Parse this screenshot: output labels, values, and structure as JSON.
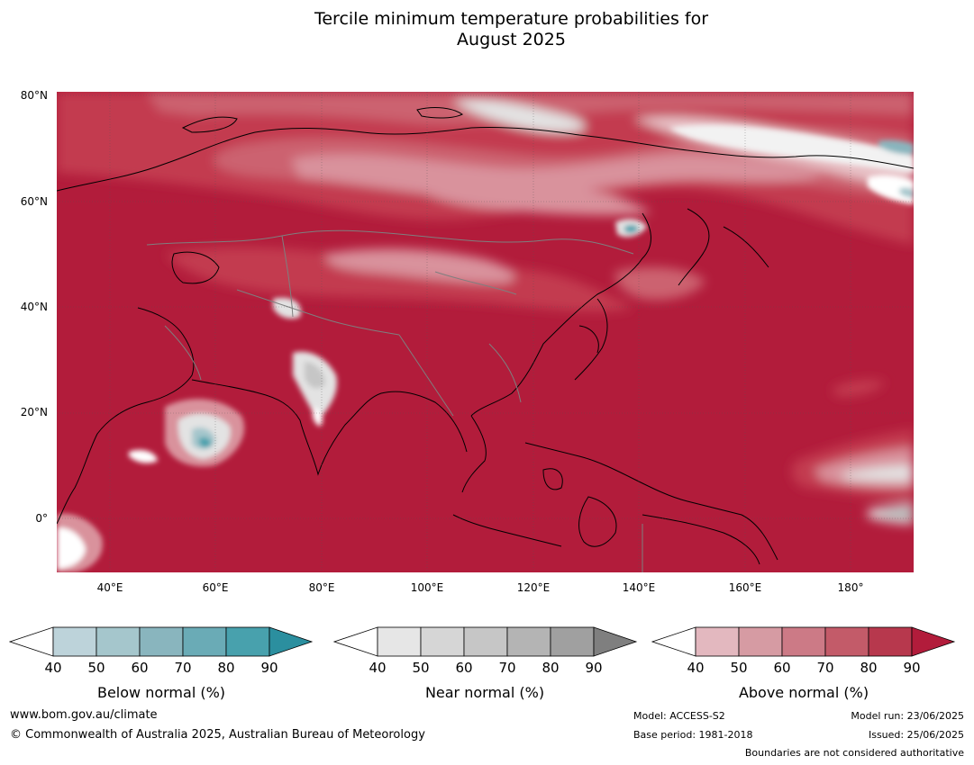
{
  "title_line1": "Tercile minimum temperature probabilities for",
  "title_line2": "August 2025",
  "lat_labels": [
    "80°N",
    "60°N",
    "40°N",
    "20°N",
    "0°"
  ],
  "lon_labels": [
    "40°E",
    "60°E",
    "80°E",
    "100°E",
    "120°E",
    "140°E",
    "160°E",
    "180°"
  ],
  "colorbars": [
    {
      "caption": "Below normal (%)",
      "ticks": [
        "40",
        "50",
        "60",
        "70",
        "80",
        "90"
      ],
      "colors": [
        "#ffffff",
        "#bdd3da",
        "#a5c6cc",
        "#89b5be",
        "#6aabb6",
        "#48a1ad",
        "#2b8f9f"
      ]
    },
    {
      "caption": "Near normal (%)",
      "ticks": [
        "40",
        "50",
        "60",
        "70",
        "80",
        "90"
      ],
      "colors": [
        "#ffffff",
        "#e6e6e6",
        "#d6d6d6",
        "#c6c6c6",
        "#b4b4b4",
        "#a0a0a0",
        "#7f7f7f"
      ]
    },
    {
      "caption": "Above normal (%)",
      "ticks": [
        "40",
        "50",
        "60",
        "70",
        "80",
        "90"
      ],
      "colors": [
        "#ffffff",
        "#e3b8bf",
        "#d69ba3",
        "#cc7a86",
        "#c35b69",
        "#b7384d",
        "#b21c3b"
      ]
    }
  ],
  "footer": {
    "website": "www.bom.gov.au/climate",
    "copyright": "© Commonwealth of Australia 2025, Australian Bureau of Meteorology",
    "model": "Model: ACCESS-S2",
    "base_period": "Base period: 1981-2018",
    "model_run": "Model run: 23/06/2025",
    "issued": "Issued: 25/06/2025",
    "disclaimer": "Boundaries are not considered authoritative"
  },
  "map_colors": {
    "deep_red": "#b21c3b",
    "red": "#c33a50",
    "mid_red": "#cc6270",
    "pink": "#d9929c",
    "light_pink": "#e8c2c7",
    "light_grey": "#e3e3e3",
    "grey": "#a8a8a8",
    "teal": "#5eaab6"
  }
}
